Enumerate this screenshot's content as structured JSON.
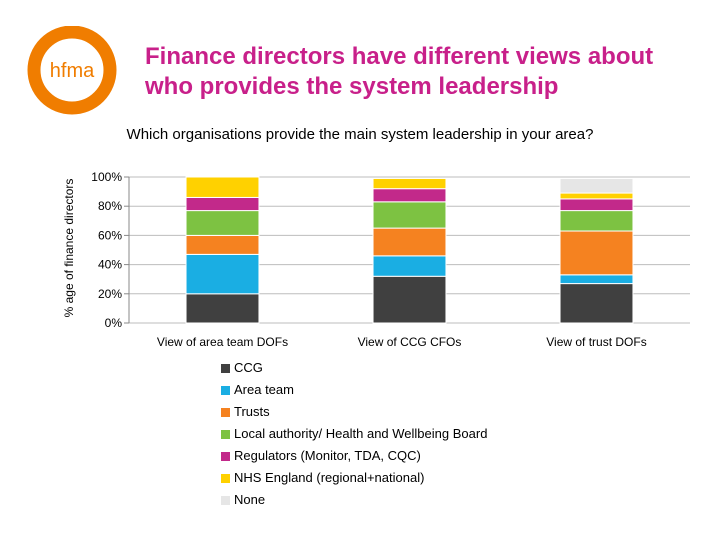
{
  "header": {
    "logo_text": "hfma",
    "title_line1": "Finance directors have different views about",
    "title_line2": "who provides the system leadership"
  },
  "colors": {
    "logo": "#f07d00",
    "title": "#c8208a"
  },
  "chart_data": {
    "type": "bar",
    "stacked": true,
    "title": "Which organisations provide the main system leadership in your area?",
    "ylabel": "% age of finance directors",
    "xlabel": "",
    "ylim": [
      0,
      100
    ],
    "yticks": [
      "0%",
      "20%",
      "40%",
      "60%",
      "80%",
      "100%"
    ],
    "grid": true,
    "legend_position": "bottom",
    "categories": [
      "View of area team DOFs",
      "View of CCG CFOs",
      "View of trust DOFs"
    ],
    "series": [
      {
        "name": "CCG",
        "color": "#404040",
        "values": [
          20,
          32,
          27
        ]
      },
      {
        "name": "Area team",
        "color": "#1aaee3",
        "values": [
          27,
          14,
          6
        ]
      },
      {
        "name": "Trusts",
        "color": "#f58220",
        "values": [
          13,
          19,
          30
        ]
      },
      {
        "name": "Local authority/ Health and Wellbeing Board",
        "color": "#7dc242",
        "values": [
          17,
          18,
          14
        ]
      },
      {
        "name": "Regulators (Monitor, TDA, CQC)",
        "color": "#c2298a",
        "values": [
          9,
          9,
          8
        ]
      },
      {
        "name": "NHS England (regional+national)",
        "color": "#ffd100",
        "values": [
          14,
          7,
          4
        ]
      },
      {
        "name": "None",
        "color": "#e6e6e6",
        "values": [
          0,
          0,
          10
        ]
      }
    ]
  }
}
